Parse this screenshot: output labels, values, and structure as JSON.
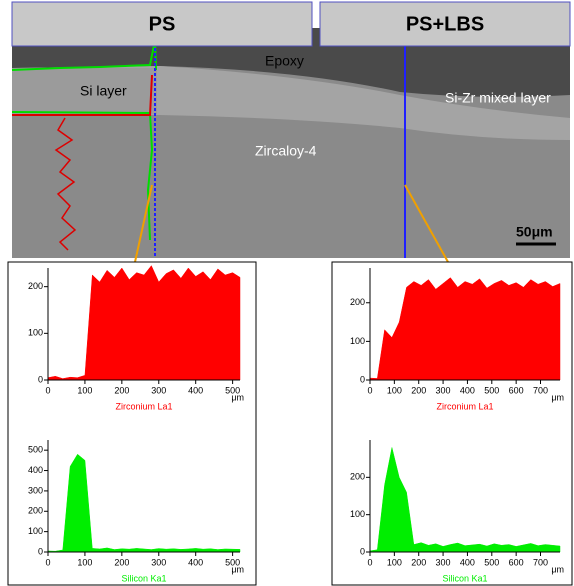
{
  "header": {
    "left": "PS",
    "right": "PS+LBS"
  },
  "image_labels": {
    "epoxy": "Epoxy",
    "si_layer": "Si layer",
    "mixed": "Si-Zr mixed layer",
    "substrate": "Zircaloy-4",
    "scale_bar": "50μm"
  },
  "chart_data": [
    {
      "type": "area",
      "title": "Zirconium La1",
      "x_label": "μm",
      "color": "#ff0000",
      "x": [
        0,
        20,
        40,
        60,
        80,
        100,
        120,
        140,
        160,
        180,
        200,
        220,
        240,
        260,
        280,
        300,
        320,
        340,
        360,
        380,
        400,
        420,
        440,
        460,
        480,
        500,
        520
      ],
      "values": [
        5,
        8,
        3,
        6,
        5,
        10,
        225,
        210,
        235,
        220,
        240,
        215,
        230,
        225,
        245,
        210,
        228,
        236,
        218,
        240,
        222,
        232,
        215,
        238,
        225,
        230,
        220
      ],
      "xlim": [
        0,
        520
      ],
      "ylim": [
        0,
        240
      ],
      "xticks": [
        0,
        100,
        200,
        300,
        400,
        500
      ],
      "yticks": [
        0,
        100,
        200
      ]
    },
    {
      "type": "area",
      "title": "Silicon Ka1",
      "x_label": "μm",
      "color": "#00ee00",
      "x": [
        0,
        20,
        40,
        60,
        80,
        100,
        120,
        140,
        160,
        180,
        200,
        220,
        240,
        260,
        280,
        300,
        320,
        340,
        360,
        380,
        400,
        420,
        440,
        460,
        480,
        500,
        520
      ],
      "values": [
        5,
        4,
        10,
        420,
        480,
        450,
        18,
        15,
        20,
        12,
        16,
        14,
        18,
        15,
        12,
        17,
        14,
        16,
        13,
        15,
        18,
        14,
        16,
        12,
        15,
        14,
        13
      ],
      "xlim": [
        0,
        520
      ],
      "ylim": [
        0,
        550
      ],
      "xticks": [
        0,
        100,
        200,
        300,
        400,
        500
      ],
      "yticks": [
        0,
        100,
        200,
        300,
        400,
        500
      ]
    },
    {
      "type": "area",
      "title": "Zirconium La1",
      "x_label": "μm",
      "color": "#ff0000",
      "x": [
        0,
        30,
        60,
        90,
        120,
        150,
        180,
        210,
        240,
        270,
        300,
        330,
        360,
        390,
        420,
        450,
        480,
        510,
        540,
        570,
        600,
        630,
        660,
        690,
        720,
        750,
        780
      ],
      "values": [
        5,
        4,
        130,
        110,
        150,
        240,
        255,
        245,
        260,
        235,
        250,
        265,
        240,
        255,
        248,
        262,
        238,
        250,
        258,
        245,
        252,
        240,
        260,
        248,
        255,
        242,
        250
      ],
      "xlim": [
        0,
        780
      ],
      "ylim": [
        0,
        290
      ],
      "xticks": [
        0,
        100,
        200,
        300,
        400,
        500,
        600,
        700
      ],
      "yticks": [
        0,
        100,
        200
      ]
    },
    {
      "type": "area",
      "title": "Silicon Ka1",
      "x_label": "μm",
      "color": "#00ee00",
      "x": [
        0,
        30,
        60,
        90,
        120,
        150,
        180,
        210,
        240,
        270,
        300,
        330,
        360,
        390,
        420,
        450,
        480,
        510,
        540,
        570,
        600,
        630,
        660,
        690,
        720,
        750,
        780
      ],
      "values": [
        3,
        6,
        180,
        280,
        200,
        160,
        20,
        25,
        18,
        22,
        15,
        20,
        24,
        17,
        19,
        21,
        16,
        22,
        18,
        20,
        15,
        19,
        23,
        17,
        20,
        18,
        16
      ],
      "xlim": [
        0,
        780
      ],
      "ylim": [
        0,
        300
      ],
      "xticks": [
        0,
        100,
        200,
        300,
        400,
        500,
        600,
        700
      ],
      "yticks": [
        0,
        100,
        200
      ]
    }
  ]
}
